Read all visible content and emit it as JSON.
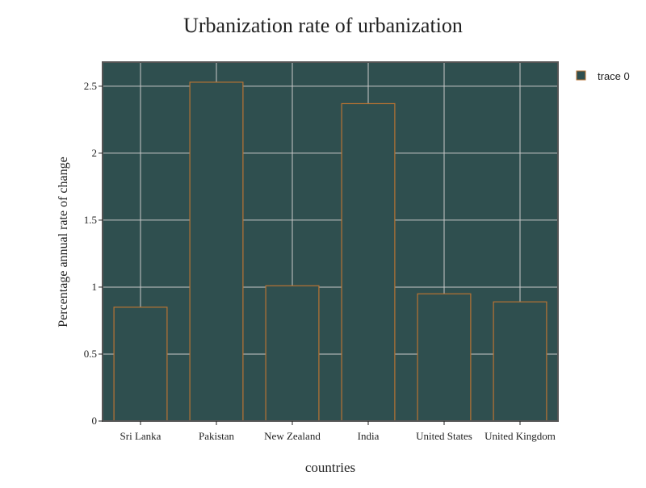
{
  "chart_data": {
    "type": "bar",
    "title": "Urbanization rate of urbanization",
    "xlabel": "countries",
    "ylabel": "Percentage annual rate of change",
    "categories": [
      "Sri Lanka",
      "Pakistan",
      "New Zealand",
      "India",
      "United States",
      "United Kingdom"
    ],
    "series": [
      {
        "name": "trace 0",
        "values": [
          0.85,
          2.53,
          1.01,
          2.37,
          0.95,
          0.89
        ]
      }
    ],
    "ylim": [
      0,
      2.68
    ],
    "yticks": [
      0,
      0.5,
      1,
      1.5,
      2,
      2.5
    ],
    "ytick_labels": [
      "0",
      "0.5",
      "1",
      "1.5",
      "2",
      "2.5"
    ],
    "grid": true,
    "legend_position": "top-right",
    "colors": {
      "plot_background": "#2f4f4f",
      "bar_fill": "#2f4f4f",
      "bar_outline": "#b87333",
      "grid": "#c8c8c8",
      "axis_frame": "#555555",
      "text": "#222222"
    }
  }
}
